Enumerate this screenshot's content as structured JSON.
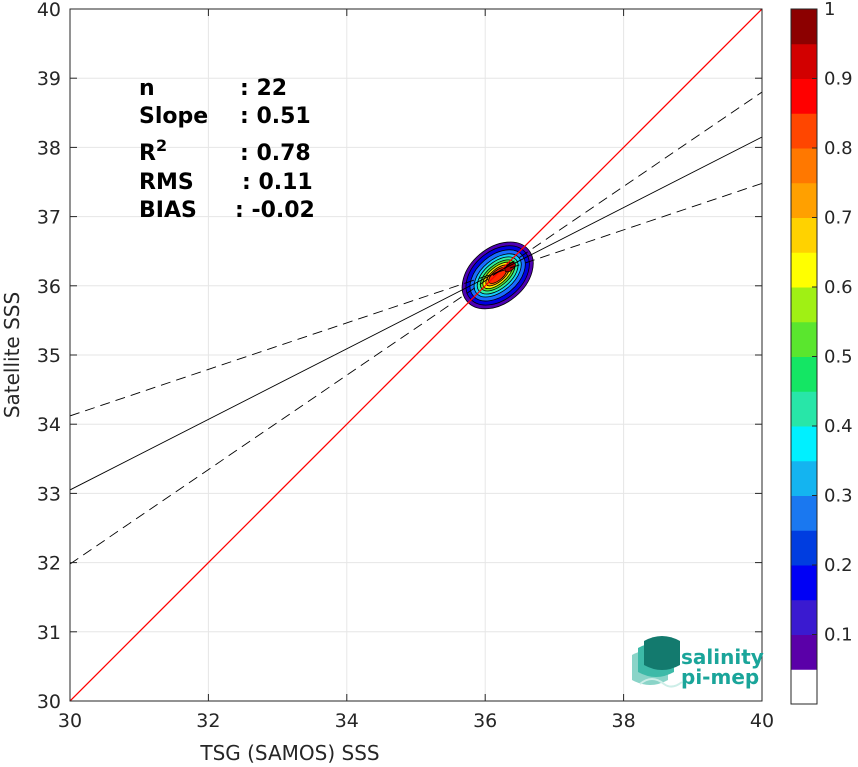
{
  "chart_data": {
    "type": "scatter",
    "subtype": "density-contour",
    "xlabel": "TSG (SAMOS) SSS",
    "ylabel": "Satellite SSS",
    "xlim": [
      30,
      40
    ],
    "ylim": [
      30,
      40
    ],
    "x_ticks": [
      30,
      32,
      34,
      36,
      38,
      40
    ],
    "y_ticks": [
      30,
      31,
      32,
      33,
      34,
      35,
      36,
      37,
      38,
      39,
      40
    ],
    "grid": true,
    "stats": [
      {
        "label": "n",
        "value": ": 22"
      },
      {
        "label": "Slope",
        "value": ": 0.51"
      },
      {
        "label": "R",
        "sup": "2",
        "value": ": 0.78"
      },
      {
        "label": "RMS",
        "value": ": 0.11"
      },
      {
        "label": "BIAS",
        "value": ": -0.02"
      }
    ],
    "lines": [
      {
        "role": "identity",
        "color": "#ff0000",
        "style": "solid",
        "points": [
          [
            30,
            30
          ],
          [
            40,
            40
          ]
        ]
      },
      {
        "role": "fit",
        "color": "#000000",
        "style": "solid",
        "points": [
          [
            30,
            33.05
          ],
          [
            40,
            38.15
          ]
        ]
      },
      {
        "role": "fit-upper",
        "color": "#000000",
        "style": "dashed",
        "points": [
          [
            30,
            34.12
          ],
          [
            40,
            37.48
          ]
        ]
      },
      {
        "role": "fit-lower",
        "color": "#000000",
        "style": "dashed",
        "points": [
          [
            30,
            31.98
          ],
          [
            40,
            38.8
          ]
        ]
      }
    ],
    "density": {
      "center": [
        36.18,
        36.15
      ],
      "contours": [
        {
          "level": 0.05,
          "rx": 0.58,
          "ry": 0.4,
          "angle": 40,
          "color": "#4d00b3"
        },
        {
          "level": 0.15,
          "rx": 0.52,
          "ry": 0.35,
          "angle": 40,
          "color": "#0000e0"
        },
        {
          "level": 0.25,
          "rx": 0.46,
          "ry": 0.29,
          "angle": 40,
          "color": "#1a6bff"
        },
        {
          "level": 0.35,
          "rx": 0.4,
          "ry": 0.23,
          "angle": 40,
          "color": "#14ccff"
        },
        {
          "level": 0.45,
          "rx": 0.35,
          "ry": 0.19,
          "angle": 40,
          "color": "#2ef0a0"
        },
        {
          "level": 0.55,
          "rx": 0.3,
          "ry": 0.15,
          "angle": 40,
          "color": "#5ae62e"
        },
        {
          "level": 0.65,
          "rx": 0.26,
          "ry": 0.12,
          "angle": 40,
          "color": "#ffef00"
        },
        {
          "level": 0.75,
          "rx": 0.21,
          "ry": 0.09,
          "angle": 40,
          "color": "#ff8c00"
        },
        {
          "level": 0.85,
          "rx": 0.16,
          "ry": 0.07,
          "angle": 40,
          "color": "#ff2a00"
        },
        {
          "level": 0.95,
          "rx": 0.09,
          "ry": 0.05,
          "angle": 40,
          "color": "#b30000",
          "offset": [
            0.18,
            0.12
          ]
        }
      ]
    },
    "colorbar": {
      "range": [
        0,
        1
      ],
      "tick_labels": [
        {
          "value": 0.1,
          "text": "0.1"
        },
        {
          "value": 0.2,
          "text": "0.2"
        },
        {
          "value": 0.3,
          "text": "0.3"
        },
        {
          "value": 0.4,
          "text": "0.4"
        },
        {
          "value": 0.5,
          "text": "0.5"
        },
        {
          "value": 0.6,
          "text": "0.6"
        },
        {
          "value": 0.7,
          "text": "0.7"
        },
        {
          "value": 0.8,
          "text": "0.8"
        },
        {
          "value": 0.9,
          "text": "0.9"
        },
        {
          "value": 1.0,
          "text": "1"
        }
      ],
      "colors": [
        "#ffffff",
        "#5a00a8",
        "#3a1ad0",
        "#0000f5",
        "#003de0",
        "#1a78f0",
        "#14b4f0",
        "#00f0ff",
        "#28e6a8",
        "#14e664",
        "#5ae62e",
        "#a0f014",
        "#ffff00",
        "#ffd200",
        "#ffa000",
        "#ff7800",
        "#ff4600",
        "#ff0000",
        "#d20000",
        "#8c0000"
      ]
    }
  },
  "logo": {
    "line1": "salinity",
    "line2": "pi-mep"
  }
}
